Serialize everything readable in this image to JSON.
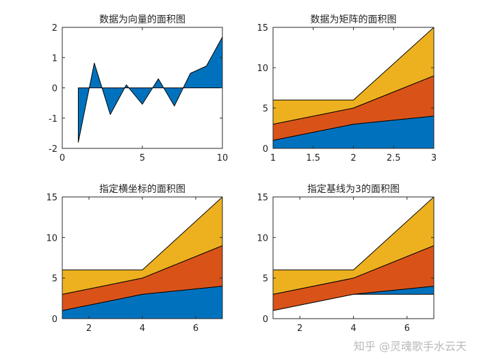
{
  "colors": {
    "c1": "#0072BD",
    "c2": "#D95319",
    "c3": "#EDB120",
    "edge": "#000000",
    "axis": "#262626"
  },
  "watermark": "知乎 @灵魂歌手水云天",
  "chart_data": [
    {
      "type": "area",
      "title": "数据为向量的面积图",
      "x": [
        1,
        2,
        3,
        4,
        5,
        6,
        7,
        8,
        9,
        10
      ],
      "series": [
        {
          "values": [
            -1.8,
            0.82,
            -0.88,
            0.1,
            -0.54,
            0.3,
            -0.6,
            0.48,
            0.72,
            1.68
          ]
        }
      ],
      "baseline": 0,
      "xlim": [
        0,
        10
      ],
      "ylim": [
        -2,
        2
      ],
      "xticks": [
        0,
        5,
        10
      ],
      "yticks": [
        -2,
        -1,
        0,
        1,
        2
      ]
    },
    {
      "type": "area",
      "title": "数据为矩阵的面积图",
      "x": [
        1,
        2,
        3
      ],
      "series": [
        {
          "values": [
            1,
            3,
            4
          ]
        },
        {
          "values": [
            2,
            2,
            5
          ]
        },
        {
          "values": [
            3,
            1,
            6
          ]
        }
      ],
      "baseline": 0,
      "xlim": [
        1,
        3
      ],
      "ylim": [
        0,
        15
      ],
      "xticks": [
        1,
        1.5,
        2,
        2.5,
        3
      ],
      "yticks": [
        0,
        5,
        10,
        15
      ]
    },
    {
      "type": "area",
      "title": "指定横坐标的面积图",
      "x": [
        1,
        4,
        7
      ],
      "series": [
        {
          "values": [
            1,
            3,
            4
          ]
        },
        {
          "values": [
            2,
            2,
            5
          ]
        },
        {
          "values": [
            3,
            1,
            6
          ]
        }
      ],
      "baseline": 0,
      "xlim": [
        1,
        7
      ],
      "ylim": [
        0,
        15
      ],
      "xticks": [
        2,
        4,
        6
      ],
      "yticks": [
        0,
        5,
        10,
        15
      ]
    },
    {
      "type": "area",
      "title": "指定基线为3的面积图",
      "x": [
        1,
        4,
        7
      ],
      "series": [
        {
          "values": [
            1,
            3,
            4
          ]
        },
        {
          "values": [
            2,
            2,
            5
          ]
        },
        {
          "values": [
            3,
            1,
            6
          ]
        }
      ],
      "baseline": 3,
      "xlim": [
        1,
        7
      ],
      "ylim": [
        0,
        15
      ],
      "xticks": [
        2,
        4,
        6
      ],
      "yticks": [
        0,
        5,
        10,
        15
      ]
    }
  ]
}
